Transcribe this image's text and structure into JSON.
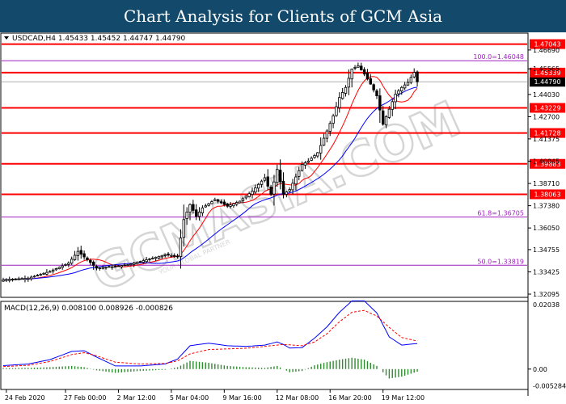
{
  "header": {
    "title": "Chart Analysis for Clients of GCM Asia"
  },
  "watermark": {
    "text": "GCMASIA.COM",
    "subtext": "YOUR GLOBAL PARTNER"
  },
  "chart_data": {
    "type": "candlestick",
    "symbol_info": "USDCAD,H4  1.45433 1.45452 1.44747 1.44790",
    "price_axis": {
      "ylim": [
        1.3195,
        1.4765
      ],
      "ticks": [
        "1.46690",
        "1.45565",
        "1.44030",
        "1.42700",
        "1.41375",
        "1.40045",
        "1.38710",
        "1.37380",
        "1.36050",
        "1.34755",
        "1.33425",
        "1.32095"
      ],
      "tick_values": [
        1.4669,
        1.45565,
        1.4403,
        1.427,
        1.41375,
        1.40045,
        1.3871,
        1.3738,
        1.3605,
        1.34755,
        1.33425,
        1.32095
      ]
    },
    "x_axis": {
      "labels": [
        "24 Feb 2020",
        "27 Feb 00:00",
        "2 Mar 12:00",
        "5 Mar 04:00",
        "9 Mar 16:00",
        "12 Mar 08:00",
        "16 Mar 20:00",
        "19 Mar 12:00"
      ],
      "label_bar_index": [
        1,
        20,
        37,
        54,
        71,
        88,
        105,
        122
      ]
    },
    "levels": [
      {
        "label": "1.47043",
        "value": 1.47043,
        "kind": "resistance",
        "color": "#ff0000"
      },
      {
        "label": "1.45339",
        "value": 1.45339,
        "kind": "resistance",
        "color": "#ff0000"
      },
      {
        "label": "1.43229",
        "value": 1.43229,
        "kind": "support",
        "color": "#ff0000"
      },
      {
        "label": "1.41728",
        "value": 1.41728,
        "kind": "support",
        "color": "#ff0000"
      },
      {
        "label": "1.39883",
        "value": 1.39883,
        "kind": "support",
        "color": "#ff0000"
      },
      {
        "label": "1.38063",
        "value": 1.38063,
        "kind": "support",
        "color": "#ff0000"
      }
    ],
    "fib_levels": [
      {
        "label": "100.0=1.46048",
        "value": 1.46048
      },
      {
        "label": "61.8=1.36705",
        "value": 1.36705
      },
      {
        "label": "50.0=1.33819",
        "value": 1.33819
      }
    ],
    "current_price": {
      "label": "1.44790",
      "value": 1.4479
    },
    "close_anchors": [
      [
        0,
        1.3295
      ],
      [
        8,
        1.3305
      ],
      [
        15,
        1.3345
      ],
      [
        21,
        1.3395
      ],
      [
        24,
        1.3465
      ],
      [
        27,
        1.3415
      ],
      [
        30,
        1.3365
      ],
      [
        36,
        1.3375
      ],
      [
        40,
        1.3385
      ],
      [
        44,
        1.3405
      ],
      [
        48,
        1.3425
      ],
      [
        52,
        1.3445
      ],
      [
        56,
        1.3435
      ],
      [
        58,
        1.3655
      ],
      [
        60,
        1.3745
      ],
      [
        62,
        1.3675
      ],
      [
        64,
        1.3725
      ],
      [
        68,
        1.3775
      ],
      [
        72,
        1.3735
      ],
      [
        76,
        1.3765
      ],
      [
        80,
        1.3825
      ],
      [
        84,
        1.3905
      ],
      [
        86,
        1.3805
      ],
      [
        88,
        1.3955
      ],
      [
        90,
        1.3805
      ],
      [
        92,
        1.3835
      ],
      [
        96,
        1.3985
      ],
      [
        98,
        1.4005
      ],
      [
        101,
        1.4055
      ],
      [
        104,
        1.4185
      ],
      [
        106,
        1.4275
      ],
      [
        108,
        1.4385
      ],
      [
        110,
        1.4445
      ],
      [
        112,
        1.4555
      ],
      [
        114,
        1.4575
      ],
      [
        116,
        1.4525
      ],
      [
        118,
        1.4465
      ],
      [
        120,
        1.4395
      ],
      [
        122,
        1.4225
      ],
      [
        124,
        1.4315
      ],
      [
        126,
        1.4405
      ],
      [
        128,
        1.4445
      ],
      [
        130,
        1.4475
      ],
      [
        132,
        1.4535
      ],
      [
        133,
        1.4479
      ]
    ],
    "ma_fast": {
      "color": "#ff0000"
    },
    "ma_slow": {
      "color": "#0000ff"
    },
    "macd": {
      "label": "MACD(12,26,9) 0.008100 0.008926 -0.000826",
      "ylim": [
        -0.0062,
        0.0212
      ],
      "ticks": [
        "0.02038",
        "0.00",
        "-0.005284"
      ],
      "tick_values": [
        0.02038,
        0.0,
        -0.005284
      ],
      "signal_anchors": [
        [
          0,
          0.0008
        ],
        [
          8,
          0.0012
        ],
        [
          15,
          0.0024
        ],
        [
          22,
          0.0046
        ],
        [
          26,
          0.0052
        ],
        [
          30,
          0.0042
        ],
        [
          36,
          0.0022
        ],
        [
          44,
          0.0016
        ],
        [
          52,
          0.0018
        ],
        [
          56,
          0.0026
        ],
        [
          60,
          0.0048
        ],
        [
          66,
          0.0062
        ],
        [
          72,
          0.0064
        ],
        [
          78,
          0.0066
        ],
        [
          84,
          0.0072
        ],
        [
          90,
          0.0078
        ],
        [
          96,
          0.0074
        ],
        [
          100,
          0.0086
        ],
        [
          104,
          0.0112
        ],
        [
          108,
          0.015
        ],
        [
          112,
          0.018
        ],
        [
          116,
          0.0186
        ],
        [
          120,
          0.0168
        ],
        [
          124,
          0.0132
        ],
        [
          128,
          0.01
        ],
        [
          133,
          0.0089
        ]
      ],
      "hist_anchors": [
        [
          0,
          0.0003
        ],
        [
          8,
          0.0004
        ],
        [
          15,
          0.0006
        ],
        [
          22,
          0.001
        ],
        [
          26,
          0.0006
        ],
        [
          30,
          -0.0004
        ],
        [
          36,
          -0.0012
        ],
        [
          44,
          -0.0006
        ],
        [
          52,
          -0.0002
        ],
        [
          56,
          0.0006
        ],
        [
          60,
          0.0026
        ],
        [
          66,
          0.002
        ],
        [
          72,
          0.001
        ],
        [
          78,
          0.0006
        ],
        [
          84,
          0.0004
        ],
        [
          88,
          0.001
        ],
        [
          92,
          -0.001
        ],
        [
          96,
          -0.0006
        ],
        [
          100,
          0.0012
        ],
        [
          104,
          0.0022
        ],
        [
          108,
          0.003
        ],
        [
          112,
          0.0036
        ],
        [
          116,
          0.003
        ],
        [
          120,
          0.001
        ],
        [
          124,
          -0.003
        ],
        [
          128,
          -0.0024
        ],
        [
          133,
          -0.0008
        ]
      ]
    }
  }
}
